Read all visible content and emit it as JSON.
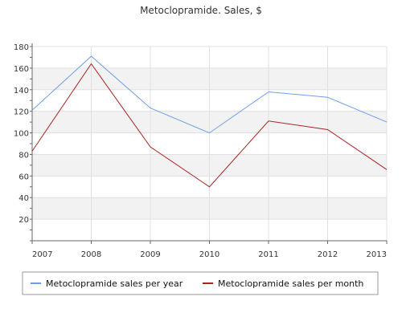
{
  "chart_data": {
    "type": "line",
    "title": "Metoclopramide. Sales, $",
    "xlabel": "",
    "ylabel": "",
    "categories": [
      "2007",
      "2008",
      "2009",
      "2010",
      "2011",
      "2012",
      "2013"
    ],
    "ylim": [
      0,
      180
    ],
    "yticks": [
      20,
      40,
      60,
      80,
      100,
      120,
      140,
      160,
      180
    ],
    "grid": true,
    "legend_position": "bottom",
    "series": [
      {
        "name": "Metoclopramide sales per year",
        "color": "#6f9ee8",
        "values": [
          121,
          171,
          123,
          100,
          138,
          133,
          110
        ]
      },
      {
        "name": "Metoclopramide sales per month",
        "color": "#aa2222",
        "values": [
          83,
          164,
          87,
          50,
          111,
          103,
          66
        ]
      }
    ]
  }
}
